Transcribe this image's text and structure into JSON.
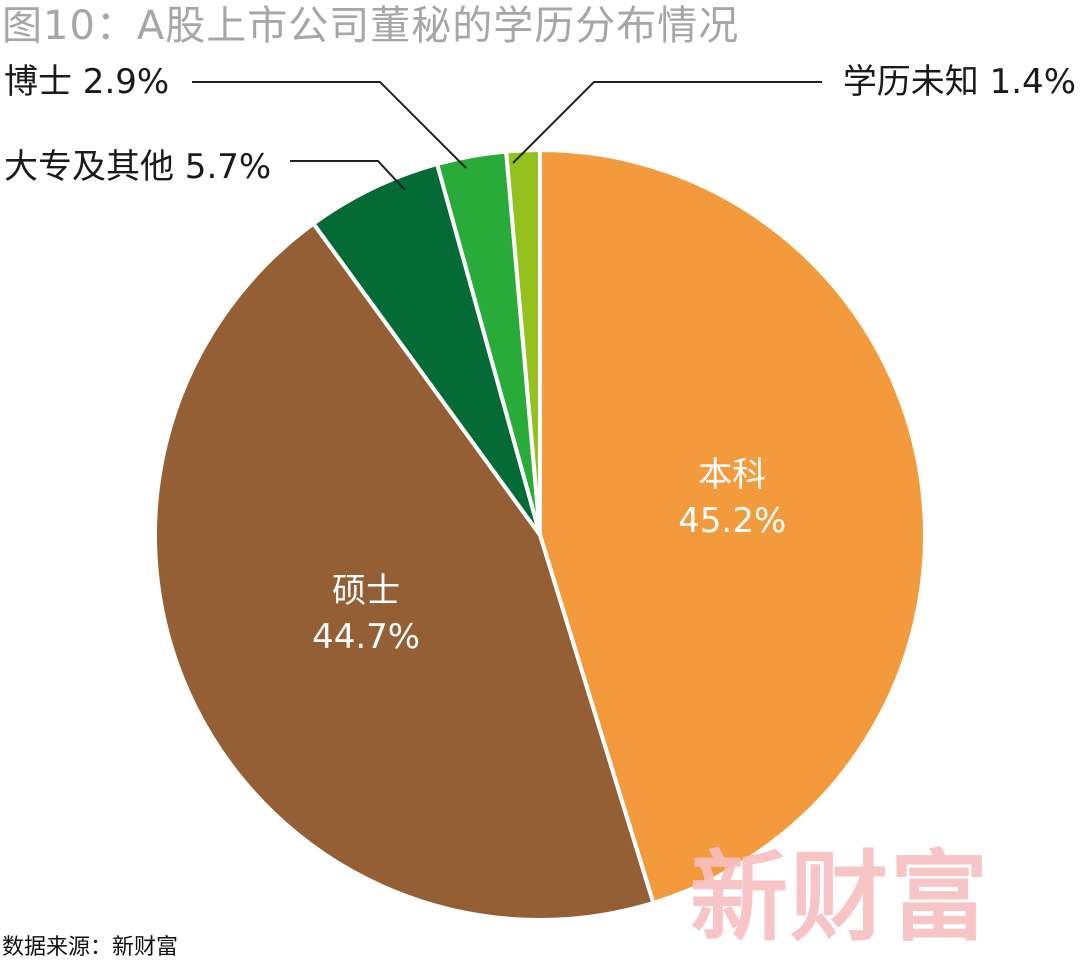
{
  "title": "图10：A股上市公司董秘的学历分布情况",
  "source": "数据来源：新财富",
  "watermark": "新财富",
  "chart_data": {
    "type": "pie",
    "title": "图10：A股上市公司董秘的学历分布情况",
    "start_angle_deg": 0,
    "direction": "clockwise",
    "slices": [
      {
        "label": "本科",
        "value": 45.2,
        "value_label": "45.2%",
        "color": "#f29a3c",
        "label_position": "inside"
      },
      {
        "label": "硕士",
        "value": 44.7,
        "value_label": "44.7%",
        "color": "#945f34",
        "label_position": "inside"
      },
      {
        "label": "大专及其他",
        "value": 5.7,
        "value_label": "5.7%",
        "color": "#046a36",
        "label_position": "outside-left"
      },
      {
        "label": "博士",
        "value": 2.9,
        "value_label": "2.9%",
        "color": "#29ab3a",
        "label_position": "outside-left"
      },
      {
        "label": "学历未知",
        "value": 1.4,
        "value_label": "1.4%",
        "color": "#95c11f",
        "label_position": "outside-right"
      }
    ],
    "legend": "none"
  }
}
